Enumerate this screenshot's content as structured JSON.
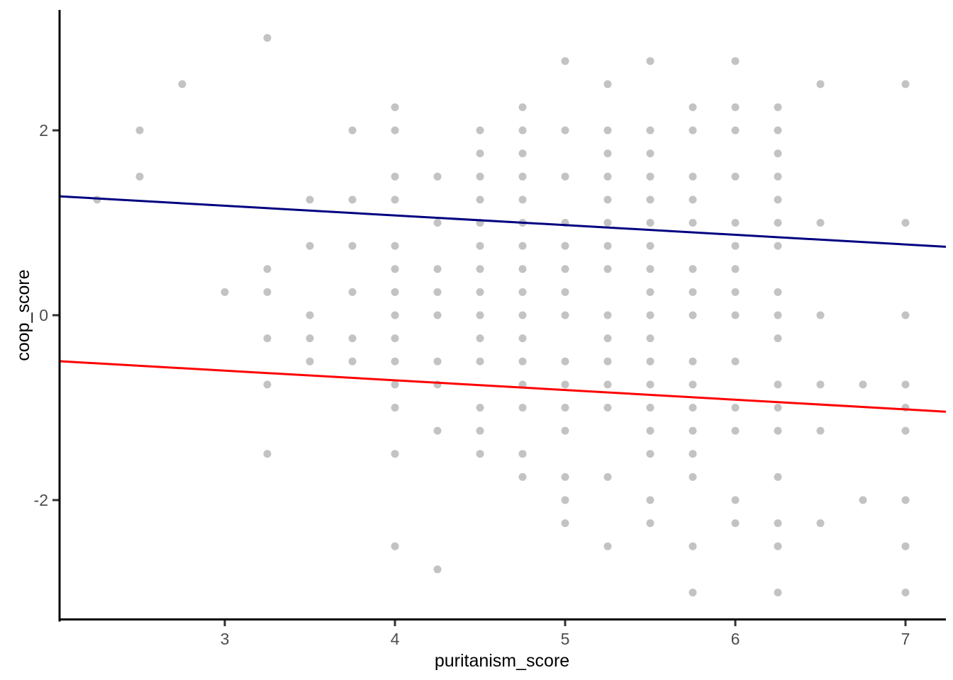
{
  "figure": {
    "background": "#FFFFFF"
  },
  "chart_data": {
    "type": "scatter",
    "title": "",
    "xlabel": "puritanism_score",
    "ylabel": "coop_score",
    "xlim": [
      2.025,
      7.2375
    ],
    "ylim": [
      -3.303,
      3.303
    ],
    "x_ticks": [
      3,
      4,
      5,
      6,
      7
    ],
    "x_tick_labels": [
      "3",
      "4",
      "5",
      "6",
      "7"
    ],
    "y_ticks": [
      -2,
      0,
      2
    ],
    "y_tick_labels": [
      "-2",
      "0",
      "2"
    ],
    "grid": "off",
    "legend": "none",
    "point_color": "#C3C3C3",
    "point_radius": 5.5,
    "axis_line_color": "#000000",
    "tick_mark_color": "#333333",
    "tick_label_color": "#4D4D4D",
    "points": [
      [
        2.25,
        1.25
      ],
      [
        2.5,
        2
      ],
      [
        2.5,
        1.5
      ],
      [
        2.75,
        2.5
      ],
      [
        3,
        0.25
      ],
      [
        3.25,
        3
      ],
      [
        3.25,
        0.5
      ],
      [
        3.25,
        0.25
      ],
      [
        3.25,
        -0.25
      ],
      [
        3.25,
        -0.75
      ],
      [
        3.25,
        -1.5
      ],
      [
        3.5,
        1.25
      ],
      [
        3.5,
        0.75
      ],
      [
        3.5,
        0
      ],
      [
        3.5,
        -0.25
      ],
      [
        3.5,
        -0.5
      ],
      [
        3.75,
        2
      ],
      [
        3.75,
        1.25
      ],
      [
        3.75,
        0.75
      ],
      [
        3.75,
        0.25
      ],
      [
        3.75,
        -0.25
      ],
      [
        3.75,
        -0.5
      ],
      [
        4,
        2.25
      ],
      [
        4,
        2
      ],
      [
        4,
        1.5
      ],
      [
        4,
        1.25
      ],
      [
        4,
        0.75
      ],
      [
        4,
        0.5
      ],
      [
        4,
        0.25
      ],
      [
        4,
        0
      ],
      [
        4,
        -0.25
      ],
      [
        4,
        -0.5
      ],
      [
        4,
        -0.75
      ],
      [
        4,
        -1
      ],
      [
        4,
        -1.5
      ],
      [
        4,
        -2.5
      ],
      [
        4.25,
        1.5
      ],
      [
        4.25,
        1
      ],
      [
        4.25,
        0.5
      ],
      [
        4.25,
        0.25
      ],
      [
        4.25,
        0
      ],
      [
        4.25,
        -0.5
      ],
      [
        4.25,
        -0.75
      ],
      [
        4.25,
        -1.25
      ],
      [
        4.25,
        -2.75
      ],
      [
        4.5,
        2
      ],
      [
        4.5,
        1.75
      ],
      [
        4.5,
        1.5
      ],
      [
        4.5,
        1.25
      ],
      [
        4.5,
        1
      ],
      [
        4.5,
        0.75
      ],
      [
        4.5,
        0.5
      ],
      [
        4.5,
        0.25
      ],
      [
        4.5,
        0
      ],
      [
        4.5,
        -0.25
      ],
      [
        4.5,
        -0.5
      ],
      [
        4.5,
        -1
      ],
      [
        4.5,
        -1.25
      ],
      [
        4.5,
        -1.5
      ],
      [
        4.75,
        2.25
      ],
      [
        4.75,
        2
      ],
      [
        4.75,
        1.75
      ],
      [
        4.75,
        1.5
      ],
      [
        4.75,
        1.25
      ],
      [
        4.75,
        1
      ],
      [
        4.75,
        0.75
      ],
      [
        4.75,
        0.5
      ],
      [
        4.75,
        0.25
      ],
      [
        4.75,
        0
      ],
      [
        4.75,
        -0.25
      ],
      [
        4.75,
        -0.5
      ],
      [
        4.75,
        -0.75
      ],
      [
        4.75,
        -1
      ],
      [
        4.75,
        -1.5
      ],
      [
        4.75,
        -1.75
      ],
      [
        5,
        2.75
      ],
      [
        5,
        2
      ],
      [
        5,
        1.5
      ],
      [
        5,
        1
      ],
      [
        5,
        0.75
      ],
      [
        5,
        0.5
      ],
      [
        5,
        0.25
      ],
      [
        5,
        0
      ],
      [
        5,
        -0.5
      ],
      [
        5,
        -0.75
      ],
      [
        5,
        -1
      ],
      [
        5,
        -1.25
      ],
      [
        5,
        -1.75
      ],
      [
        5,
        -2
      ],
      [
        5,
        -2.25
      ],
      [
        5.25,
        2.5
      ],
      [
        5.25,
        2
      ],
      [
        5.25,
        1.75
      ],
      [
        5.25,
        1.5
      ],
      [
        5.25,
        1.25
      ],
      [
        5.25,
        1
      ],
      [
        5.25,
        0.75
      ],
      [
        5.25,
        0.5
      ],
      [
        5.25,
        0
      ],
      [
        5.25,
        -0.25
      ],
      [
        5.25,
        -0.5
      ],
      [
        5.25,
        -0.75
      ],
      [
        5.25,
        -1
      ],
      [
        5.25,
        -1.75
      ],
      [
        5.25,
        -2.5
      ],
      [
        5.5,
        2.75
      ],
      [
        5.5,
        2
      ],
      [
        5.5,
        1.75
      ],
      [
        5.5,
        1.5
      ],
      [
        5.5,
        1.25
      ],
      [
        5.5,
        1
      ],
      [
        5.5,
        0.75
      ],
      [
        5.5,
        0.5
      ],
      [
        5.5,
        0.25
      ],
      [
        5.5,
        0
      ],
      [
        5.5,
        -0.25
      ],
      [
        5.5,
        -0.5
      ],
      [
        5.5,
        -0.75
      ],
      [
        5.5,
        -1
      ],
      [
        5.5,
        -1.25
      ],
      [
        5.5,
        -1.5
      ],
      [
        5.5,
        -2
      ],
      [
        5.5,
        -2.25
      ],
      [
        5.75,
        2.25
      ],
      [
        5.75,
        2
      ],
      [
        5.75,
        1.5
      ],
      [
        5.75,
        1.25
      ],
      [
        5.75,
        1
      ],
      [
        5.75,
        0.5
      ],
      [
        5.75,
        0.25
      ],
      [
        5.75,
        0
      ],
      [
        5.75,
        -0.5
      ],
      [
        5.75,
        -0.75
      ],
      [
        5.75,
        -1
      ],
      [
        5.75,
        -1.25
      ],
      [
        5.75,
        -1.5
      ],
      [
        5.75,
        -1.75
      ],
      [
        5.75,
        -2.5
      ],
      [
        5.75,
        -3
      ],
      [
        6,
        2.75
      ],
      [
        6,
        2.25
      ],
      [
        6,
        2
      ],
      [
        6,
        1.5
      ],
      [
        6,
        1
      ],
      [
        6,
        0.75
      ],
      [
        6,
        0.5
      ],
      [
        6,
        0.25
      ],
      [
        6,
        0
      ],
      [
        6,
        -0.5
      ],
      [
        6,
        -1
      ],
      [
        6,
        -1.25
      ],
      [
        6,
        -2
      ],
      [
        6,
        -2.25
      ],
      [
        6.25,
        2.25
      ],
      [
        6.25,
        2
      ],
      [
        6.25,
        1.75
      ],
      [
        6.25,
        1.5
      ],
      [
        6.25,
        1.25
      ],
      [
        6.25,
        1
      ],
      [
        6.25,
        0.75
      ],
      [
        6.25,
        0.25
      ],
      [
        6.25,
        0
      ],
      [
        6.25,
        -0.25
      ],
      [
        6.25,
        -0.75
      ],
      [
        6.25,
        -1
      ],
      [
        6.25,
        -1.25
      ],
      [
        6.25,
        -1.75
      ],
      [
        6.25,
        -2.25
      ],
      [
        6.25,
        -2.5
      ],
      [
        6.25,
        -3
      ],
      [
        6.5,
        2.5
      ],
      [
        6.5,
        1
      ],
      [
        6.5,
        0
      ],
      [
        6.5,
        -0.75
      ],
      [
        6.5,
        -1.25
      ],
      [
        6.5,
        -2.25
      ],
      [
        6.75,
        -0.75
      ],
      [
        6.75,
        -2
      ],
      [
        7,
        2.5
      ],
      [
        7,
        1
      ],
      [
        7,
        0
      ],
      [
        7,
        -0.75
      ],
      [
        7,
        -1
      ],
      [
        7,
        -1.25
      ],
      [
        7,
        -2
      ],
      [
        7,
        -2.5
      ],
      [
        7,
        -3
      ]
    ],
    "lines": [
      {
        "name": "navy-fit-line",
        "color": "#000080",
        "width": 3,
        "x1": 2.025,
        "y1": 1.287,
        "x2": 7.2375,
        "y2": 0.74
      },
      {
        "name": "red-fit-line",
        "color": "#FF0000",
        "width": 3,
        "x1": 2.025,
        "y1": -0.497,
        "x2": 7.2375,
        "y2": -1.044
      }
    ]
  }
}
